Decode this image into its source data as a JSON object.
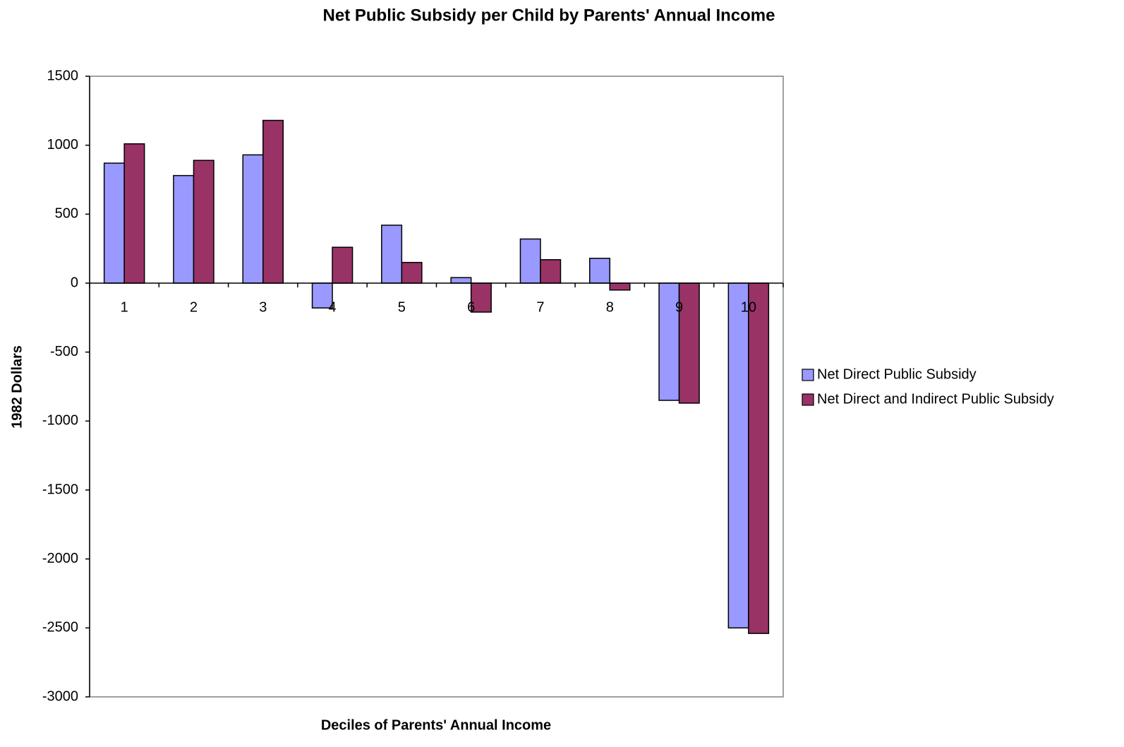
{
  "chart_data": {
    "type": "bar",
    "title": "Net Public Subsidy per Child by Parents' Annual  Income",
    "x_label": "Deciles of Parents' Annual Income",
    "y_label": "1982 Dollars",
    "categories": [
      "1",
      "2",
      "3",
      "4",
      "5",
      "6",
      "7",
      "8",
      "9",
      "10"
    ],
    "series": [
      {
        "name": "Net Direct Public Subsidy",
        "color": "#9999ff",
        "values": [
          870,
          780,
          930,
          -180,
          420,
          40,
          320,
          180,
          -850,
          -2500
        ]
      },
      {
        "name": "Net Direct and Indirect Public Subsidy",
        "color": "#993366",
        "values": [
          1010,
          890,
          1180,
          260,
          150,
          -210,
          170,
          -50,
          -870,
          -2540
        ]
      }
    ],
    "ylim": [
      -3000,
      1500
    ],
    "yticks": [
      -3000,
      -2500,
      -2000,
      -1500,
      -1000,
      -500,
      0,
      500,
      1000,
      1500
    ],
    "legend": "right"
  }
}
